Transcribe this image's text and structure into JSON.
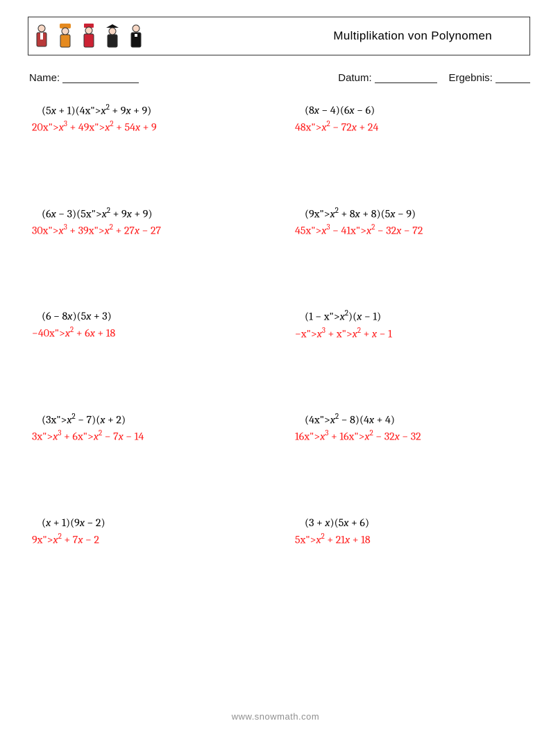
{
  "header": {
    "title": "Multiplikation von Polynomen"
  },
  "meta": {
    "name_label": "Name: ",
    "date_label": "Datum: ",
    "score_label": "    Ergebnis: ",
    "name_blank_style": "width:110px",
    "date_blank_style": "width:90px",
    "score_blank_style": "width:50px"
  },
  "style": {
    "problem_color": "#000000",
    "answer_color": "#ff1a1a",
    "font_family": "Cambria, 'Times New Roman', serif",
    "font_size_pt": 12
  },
  "problems": [
    {
      "problem": "(5x + 1)(4x^2 + 9x + 9)",
      "answer": "20x^3 + 49x^2 + 54x + 9"
    },
    {
      "problem": "(8x − 4)(6x − 6)",
      "answer": "48x^2 − 72x + 24"
    },
    {
      "problem": "(6x − 3)(5x^2 + 9x + 9)",
      "answer": "30x^3 + 39x^2 + 27x − 27"
    },
    {
      "problem": "(9x^2 + 8x + 8)(5x − 9)",
      "answer": "45x^3 − 41x^2 − 32x − 72"
    },
    {
      "problem": "(6 − 8x)(5x + 3)",
      "answer": "−40x^2 + 6x + 18"
    },
    {
      "problem": "(1 − x^2)(x − 1)",
      "answer": "−x^3 + x^2 + x − 1"
    },
    {
      "problem": "(3x^2 − 7)(x + 2)",
      "answer": "3x^3 + 6x^2 − 7x − 14"
    },
    {
      "problem": "(4x^2 − 8)(4x + 4)",
      "answer": "16x^3 + 16x^2 − 32x − 32"
    },
    {
      "problem": "(x + 1)(9x − 2)",
      "answer": "9x^2 + 7x − 2"
    },
    {
      "problem": "(3 + x)(5x + 6)",
      "answer": "5x^2 + 21x + 18"
    }
  ],
  "footer": {
    "text": "www.snowmath.com"
  }
}
